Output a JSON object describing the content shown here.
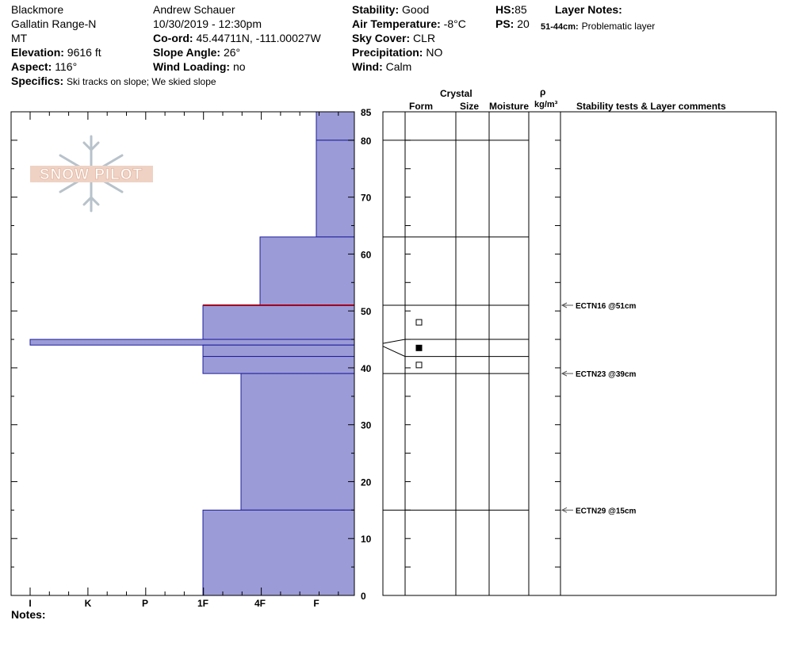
{
  "header": {
    "site": "Blackmore",
    "range": "Gallatin Range-N",
    "state": "MT",
    "elevation_label": "Elevation:",
    "elevation_value": "9616 ft",
    "aspect_label": "Aspect:",
    "aspect_value": "116°",
    "specifics_label": "Specifics:",
    "specifics_value": "Ski tracks on slope; We skied slope",
    "observer": "Andrew Schauer",
    "datetime": "10/30/2019 - 12:30pm",
    "coord_label": "Co-ord:",
    "coord_value": "45.44711N, -111.00027W",
    "slope_label": "Slope Angle:",
    "slope_value": "26°",
    "wind_loading_label": "Wind Loading:",
    "wind_loading_value": "no",
    "stability_label": "Stability:",
    "stability_value": "Good",
    "air_temp_label": "Air Temperature:",
    "air_temp_value": "-8°C",
    "sky_label": "Sky Cover:",
    "sky_value": "CLR",
    "precip_label": "Precipitation:",
    "precip_value": "NO",
    "wind_label": "Wind:",
    "wind_value": "Calm",
    "hs_label": "HS:",
    "hs_value": "85",
    "ps_label": "PS:",
    "ps_value": "20",
    "layer_notes_label": "Layer Notes:",
    "layer_note_range": "51-44cm:",
    "layer_note_text": "Problematic layer"
  },
  "logo_text": "SNOW PILOT",
  "notes_label": "Notes:",
  "columns": {
    "crystal": "Crystal",
    "form": "Form",
    "size": "Size",
    "moisture": "Moisture",
    "rho": "ρ",
    "density_unit": "kg/m³",
    "stability_comments": "Stability tests & Layer comments"
  },
  "colors": {
    "hardness_fill": "#9b9bd7",
    "hardness_stroke": "#1c1c9c",
    "problem_line": "#a0001e"
  },
  "chart_data": {
    "type": "bar",
    "orientation": "horizontal-step",
    "y_axis": {
      "range": [
        0,
        85
      ],
      "ticks": [
        0,
        10,
        20,
        30,
        40,
        50,
        60,
        70,
        80,
        85
      ],
      "unit": "cm"
    },
    "x_axis": {
      "categories": [
        "I",
        "K",
        "P",
        "1F",
        "4F",
        "F"
      ],
      "reversed": true,
      "right_limit": "F-"
    },
    "layers": [
      {
        "bottom": 80,
        "top": 85,
        "hardness": "F-"
      },
      {
        "bottom": 63,
        "top": 80,
        "hardness": "F-"
      },
      {
        "bottom": 51,
        "top": 63,
        "hardness": "4F-"
      },
      {
        "bottom": 45,
        "top": 51,
        "hardness": "1F"
      },
      {
        "bottom": 44,
        "top": 45,
        "hardness": "I"
      },
      {
        "bottom": 42,
        "top": 44,
        "hardness": "1F"
      },
      {
        "bottom": 39,
        "top": 42,
        "hardness": "1F"
      },
      {
        "bottom": 15,
        "top": 39,
        "hardness": "4F+"
      },
      {
        "bottom": 0,
        "top": 15,
        "hardness": "1F"
      }
    ],
    "problem_layer_depth": 51,
    "crystal_markers": [
      {
        "depth": 48,
        "kind": "open-square"
      },
      {
        "depth": 43.5,
        "kind": "filled-square"
      },
      {
        "depth": 40.5,
        "kind": "open-square"
      }
    ],
    "tests": [
      {
        "depth": 51,
        "label": "ECTN16 @51cm"
      },
      {
        "depth": 39,
        "label": "ECTN23 @39cm"
      },
      {
        "depth": 15,
        "label": "ECTN29 @15cm"
      }
    ]
  }
}
